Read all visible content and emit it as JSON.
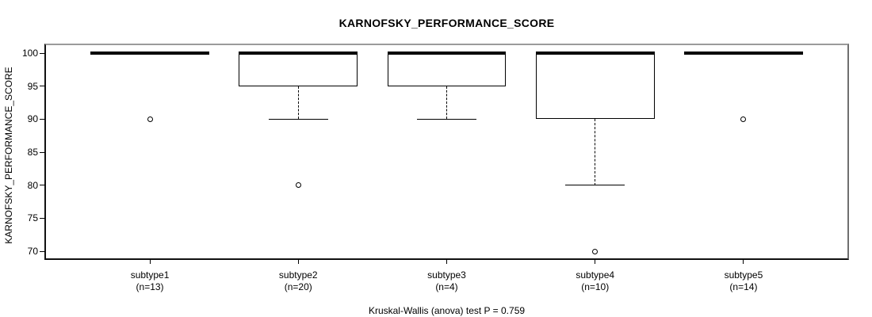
{
  "title": "KARNOFSKY_PERFORMANCE_SCORE",
  "caption": "Kruskal-Wallis (anova) test P = 0.759",
  "chart_data": {
    "type": "boxplot",
    "title": "KARNOFSKY_PERFORMANCE_SCORE",
    "xlabel": "",
    "ylabel": "KARNOFSKY_PERFORMANCE_SCORE",
    "y_ticks": [
      70,
      75,
      80,
      85,
      90,
      95,
      100
    ],
    "ylim": [
      68.8,
      101.2
    ],
    "grid": false,
    "legend": "none",
    "categories": [
      "subtype1",
      "subtype2",
      "subtype3",
      "subtype4",
      "subtype5"
    ],
    "groups": [
      {
        "label": "subtype1",
        "n_label": "(n=13)",
        "n": 13,
        "q1": 100,
        "median": 100,
        "q3": 100,
        "whisker_low": 100,
        "whisker_high": 100,
        "outliers": [
          90
        ]
      },
      {
        "label": "subtype2",
        "n_label": "(n=20)",
        "n": 20,
        "q1": 95,
        "median": 100,
        "q3": 100,
        "whisker_low": 90,
        "whisker_high": 100,
        "outliers": [
          80
        ]
      },
      {
        "label": "subtype3",
        "n_label": "(n=4)",
        "n": 4,
        "q1": 95,
        "median": 100,
        "q3": 100,
        "whisker_low": 90,
        "whisker_high": 100,
        "outliers": []
      },
      {
        "label": "subtype4",
        "n_label": "(n=10)",
        "n": 10,
        "q1": 90,
        "median": 100,
        "q3": 100,
        "whisker_low": 80,
        "whisker_high": 100,
        "outliers": [
          70
        ]
      },
      {
        "label": "subtype5",
        "n_label": "(n=14)",
        "n": 14,
        "q1": 100,
        "median": 100,
        "q3": 100,
        "whisker_low": 100,
        "whisker_high": 100,
        "outliers": [
          90
        ]
      }
    ],
    "colors": {
      "line": "#000000",
      "box_fill": "#ffffff",
      "background": "#ffffff"
    }
  }
}
